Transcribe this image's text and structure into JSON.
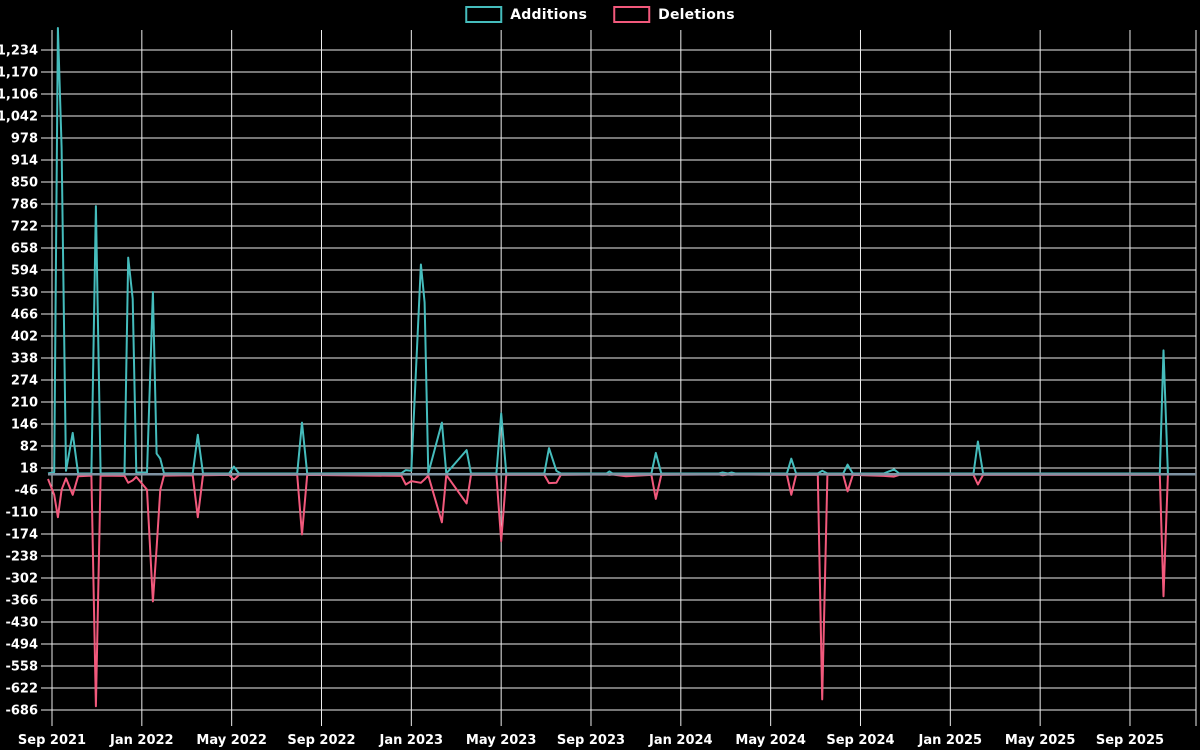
{
  "page": {
    "background": "#000000"
  },
  "legend": {
    "position": "top-center",
    "items": [
      {
        "label": "Additions",
        "color": "#45bcbc"
      },
      {
        "label": "Deletions",
        "color": "#f2597c"
      }
    ]
  },
  "chart_data": {
    "type": "line",
    "title": "",
    "xlabel": "",
    "ylabel": "",
    "legend_position": "top-center",
    "grid": true,
    "colors": {
      "background": "#000000",
      "grid": "#ededed",
      "zero_line": "#7f93a3",
      "text": "#ffffff",
      "additions": "#45bcbc",
      "deletions": "#f2597c"
    },
    "y_axis": {
      "max": 1234,
      "min": -686,
      "step": 64,
      "ticks": [
        "1,234",
        "1,170",
        "1,106",
        "1,042",
        "978",
        "914",
        "850",
        "786",
        "722",
        "658",
        "594",
        "530",
        "466",
        "402",
        "338",
        "274",
        "210",
        "146",
        "82",
        "18",
        "-46",
        "-110",
        "-174",
        "-238",
        "-302",
        "-366",
        "-430",
        "-494",
        "-558",
        "-622",
        "-686"
      ]
    },
    "x_axis": {
      "ticks": [
        "Sep 2021",
        "Jan 2022",
        "May 2022",
        "Sep 2022",
        "Jan 2023",
        "May 2023",
        "Sep 2023",
        "Jan 2024",
        "May 2024",
        "Sep 2024",
        "Jan 2025",
        "May 2025",
        "Sep 2025"
      ],
      "right_edge_line": true
    },
    "x": [
      "2021-08-26",
      "2021-09-04",
      "2021-09-09",
      "2021-09-14",
      "2021-09-20",
      "2021-09-29",
      "2021-10-06",
      "2021-10-24",
      "2021-10-30",
      "2021-11-06",
      "2021-12-08",
      "2021-12-13",
      "2021-12-19",
      "2021-12-24",
      "2022-01-08",
      "2022-01-16",
      "2022-01-21",
      "2022-01-26",
      "2022-01-31",
      "2022-03-09",
      "2022-03-16",
      "2022-03-23",
      "2022-04-28",
      "2022-05-04",
      "2022-05-11",
      "2022-07-29",
      "2022-08-05",
      "2022-08-12",
      "2022-12-18",
      "2022-12-24",
      "2023-01-01",
      "2023-01-14",
      "2023-01-19",
      "2023-01-24",
      "2023-02-12",
      "2023-02-18",
      "2023-03-15",
      "2023-03-21",
      "2023-04-25",
      "2023-05-01",
      "2023-05-08",
      "2023-06-29",
      "2023-07-05",
      "2023-07-15",
      "2023-07-21",
      "2023-09-22",
      "2023-09-26",
      "2023-09-30",
      "2023-10-18",
      "2023-11-22",
      "2023-11-28",
      "2023-12-05",
      "2024-02-22",
      "2024-02-27",
      "2024-03-04",
      "2024-03-09",
      "2024-03-14",
      "2024-05-23",
      "2024-05-29",
      "2024-06-05",
      "2024-07-04",
      "2024-07-10",
      "2024-07-17",
      "2024-08-08",
      "2024-08-14",
      "2024-08-21",
      "2024-10-02",
      "2024-10-16",
      "2024-10-23",
      "2025-02-02",
      "2025-02-08",
      "2025-02-15",
      "2025-10-11",
      "2025-10-16",
      "2025-10-22"
    ],
    "series": [
      {
        "name": "Additions",
        "color": "#45bcbc",
        "values": [
          2,
          6,
          1298,
          950,
          10,
          120,
          2,
          2,
          780,
          2,
          3,
          630,
          510,
          5,
          5,
          530,
          60,
          45,
          3,
          2,
          115,
          2,
          2,
          22,
          2,
          2,
          150,
          2,
          3,
          12,
          10,
          610,
          500,
          3,
          150,
          2,
          70,
          2,
          2,
          177,
          2,
          2,
          76,
          10,
          2,
          2,
          8,
          2,
          2,
          2,
          62,
          2,
          2,
          5,
          2,
          5,
          2,
          2,
          45,
          2,
          2,
          10,
          2,
          2,
          28,
          2,
          2,
          14,
          2,
          2,
          95,
          2,
          2,
          360,
          2
        ]
      },
      {
        "name": "Deletions",
        "color": "#f2597c",
        "values": [
          -14,
          -60,
          -125,
          -45,
          -12,
          -60,
          -6,
          -4,
          -675,
          -4,
          -5,
          -25,
          -18,
          -8,
          -45,
          -370,
          -215,
          -45,
          -4,
          -3,
          -125,
          -3,
          -2,
          -16,
          -2,
          -2,
          -175,
          -2,
          -5,
          -30,
          -20,
          -25,
          -15,
          -4,
          -140,
          -2,
          -85,
          -2,
          -2,
          -195,
          -2,
          -2,
          -26,
          -25,
          -2,
          -1,
          -2,
          -1,
          -6,
          -2,
          -72,
          -2,
          -1,
          -3,
          -1,
          -2,
          -1,
          -2,
          -60,
          -2,
          -2,
          -655,
          -2,
          -2,
          -50,
          -2,
          -5,
          -7,
          -2,
          -2,
          -30,
          -2,
          -2,
          -355,
          -2
        ]
      }
    ]
  }
}
